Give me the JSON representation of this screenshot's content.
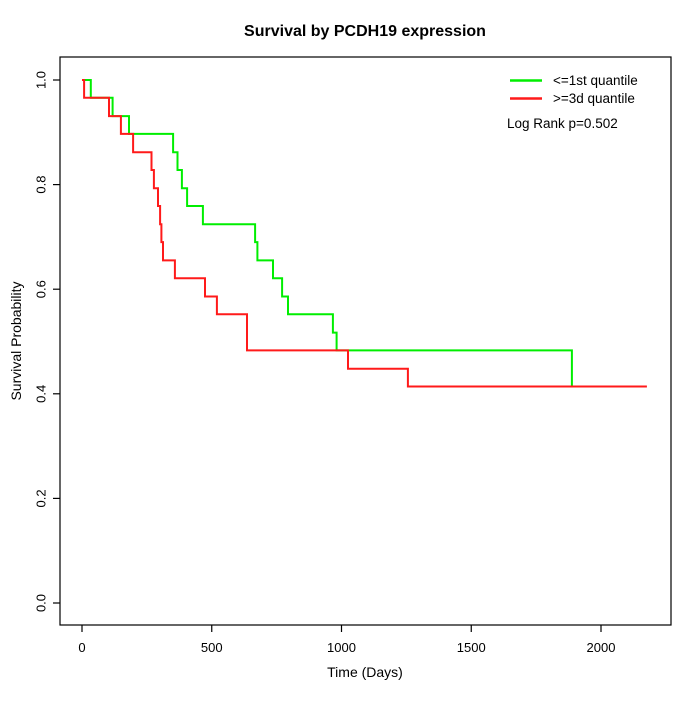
{
  "title": "Survival by PCDH19 expression",
  "chart_data": {
    "type": "line",
    "subtype": "kaplan-meier-step",
    "title": "Survival by PCDH19 expression",
    "xlabel": "Time (Days)",
    "ylabel": "Survival Probability",
    "xlim": [
      0,
      2200
    ],
    "ylim": [
      0.0,
      1.0
    ],
    "xticks": [
      0,
      500,
      1000,
      1500,
      2000
    ],
    "yticks": [
      0.0,
      0.2,
      0.4,
      0.6,
      0.8,
      1.0
    ],
    "ytick_labels": [
      "0.0",
      "0.2",
      "0.4",
      "0.6",
      "0.8",
      "1.0"
    ],
    "grid": false,
    "frame_box": true,
    "legend_position": "top-right",
    "annotation": "Log Rank p=0.502",
    "series": [
      {
        "name": "<=1st quantile",
        "color": "#00ee00",
        "points": [
          [
            0,
            1.0
          ],
          [
            34,
            0.966
          ],
          [
            118,
            0.931
          ],
          [
            181,
            0.897
          ],
          [
            351,
            0.862
          ],
          [
            368,
            0.828
          ],
          [
            385,
            0.793
          ],
          [
            405,
            0.759
          ],
          [
            466,
            0.724
          ],
          [
            667,
            0.69
          ],
          [
            676,
            0.655
          ],
          [
            736,
            0.621
          ],
          [
            771,
            0.586
          ],
          [
            794,
            0.552
          ],
          [
            967,
            0.517
          ],
          [
            981,
            0.483
          ],
          [
            1888,
            0.414
          ],
          [
            2046,
            0.414
          ]
        ]
      },
      {
        "name": ">=3d quantile",
        "color": "#ff1a1a",
        "points": [
          [
            0,
            1.0
          ],
          [
            8,
            0.966
          ],
          [
            104,
            0.931
          ],
          [
            150,
            0.897
          ],
          [
            197,
            0.862
          ],
          [
            268,
            0.828
          ],
          [
            277,
            0.793
          ],
          [
            293,
            0.759
          ],
          [
            301,
            0.724
          ],
          [
            306,
            0.69
          ],
          [
            312,
            0.655
          ],
          [
            358,
            0.621
          ],
          [
            474,
            0.586
          ],
          [
            520,
            0.552
          ],
          [
            636,
            0.483
          ],
          [
            1025,
            0.448
          ],
          [
            1256,
            0.414
          ],
          [
            2177,
            0.414
          ]
        ]
      }
    ]
  },
  "legend": {
    "items": [
      {
        "label": "<=1st quantile",
        "color": "#00ee00"
      },
      {
        "label": ">=3d quantile",
        "color": "#ff1a1a"
      }
    ],
    "annotation": "Log Rank p=0.502"
  }
}
